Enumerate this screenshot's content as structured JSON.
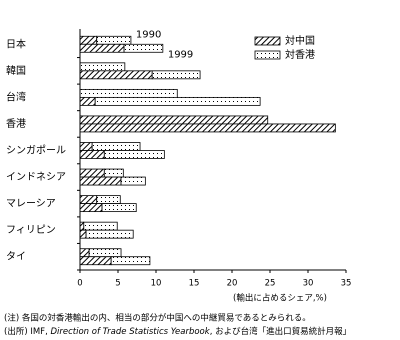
{
  "chart_data": {
    "type": "stacked-grouped-hbar",
    "categories": [
      "日本",
      "韓国",
      "台湾",
      "香港",
      "シンガポール",
      "インドネシア",
      "マレーシア",
      "フィリピン",
      "タイ"
    ],
    "years": [
      "1990",
      "1999"
    ],
    "series": [
      {
        "name": "対中国",
        "pattern": "hatch",
        "color": "#000000",
        "values": [
          [
            2.2,
            5.8
          ],
          [
            0,
            9.5
          ],
          [
            0,
            2.0
          ],
          [
            24.7,
            33.6
          ],
          [
            1.6,
            3.2
          ],
          [
            3.2,
            5.4
          ],
          [
            2.2,
            2.9
          ],
          [
            0.5,
            0.8
          ],
          [
            1.2,
            4.1
          ]
        ]
      },
      {
        "name": "対香港",
        "pattern": "dots",
        "color": "#000000",
        "values": [
          [
            4.5,
            5.1
          ],
          [
            5.9,
            6.3
          ],
          [
            12.8,
            21.7
          ],
          [
            0,
            0
          ],
          [
            6.3,
            7.9
          ],
          [
            2.5,
            3.2
          ],
          [
            3.1,
            4.5
          ],
          [
            4.4,
            6.2
          ],
          [
            4.2,
            5.1
          ]
        ]
      }
    ],
    "xlim": [
      0,
      35
    ],
    "xticks": [
      0,
      5,
      10,
      15,
      20,
      25,
      30,
      35
    ],
    "x_label": "(輸出に占めるシェア,%)",
    "legend": "top-right",
    "note": "(注)  各国の対香港輸出の内、相当の部分が中国への中継貿易であるとみられる。",
    "source": [
      "(出所) IMF, ",
      "Direction of Trade Statistics Yearbook",
      ", および台湾「進出口貿易統計月報」"
    ]
  }
}
